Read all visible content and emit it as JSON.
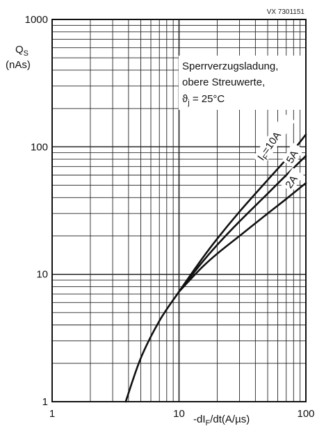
{
  "doc_code": "VX 7301151",
  "chart_data": {
    "type": "line",
    "x_scale": "log",
    "y_scale": "log",
    "xlim": [
      1,
      100
    ],
    "ylim": [
      1,
      1000
    ],
    "grid": true,
    "ylabel_line1": "Q",
    "ylabel_sub": "S",
    "ylabel_line2": "(nAs)",
    "xlabel": "-dI",
    "xlabel_sub": "F",
    "xlabel_rest": "/dt(A/µs)",
    "x_ticks": [
      {
        "value": 1,
        "label": "1"
      },
      {
        "value": 10,
        "label": "10"
      },
      {
        "value": 100,
        "label": "100"
      }
    ],
    "y_ticks": [
      {
        "value": 1,
        "label": "1"
      },
      {
        "value": 10,
        "label": "10"
      },
      {
        "value": 100,
        "label": "100"
      },
      {
        "value": 1000,
        "label": "1000"
      }
    ],
    "annotation": [
      "Sperrverzugsladung,",
      "obere Streuwerte,",
      "ϑ",
      "j",
      " = 25°C"
    ],
    "series": [
      {
        "name": "I_F=10A",
        "label_prefix": "I",
        "label_sub": "F",
        "label_suffix": "=10A",
        "x": [
          3.8,
          5,
          7,
          10,
          15,
          20,
          30,
          50,
          70,
          100
        ],
        "y": [
          1,
          2.2,
          4.3,
          7.3,
          13,
          19,
          31,
          55,
          80,
          125
        ]
      },
      {
        "name": "5A",
        "label_prefix": "",
        "label_sub": "",
        "label_suffix": "5A",
        "x": [
          10,
          15,
          20,
          30,
          50,
          70,
          100
        ],
        "y": [
          7.3,
          12.2,
          17,
          26,
          43,
          60,
          85
        ]
      },
      {
        "name": "2A",
        "label_prefix": "",
        "label_sub": "",
        "label_suffix": "2A",
        "x": [
          10,
          15,
          20,
          30,
          50,
          70,
          100
        ],
        "y": [
          7.3,
          11.2,
          14.5,
          20,
          30,
          39,
          52
        ]
      }
    ]
  }
}
